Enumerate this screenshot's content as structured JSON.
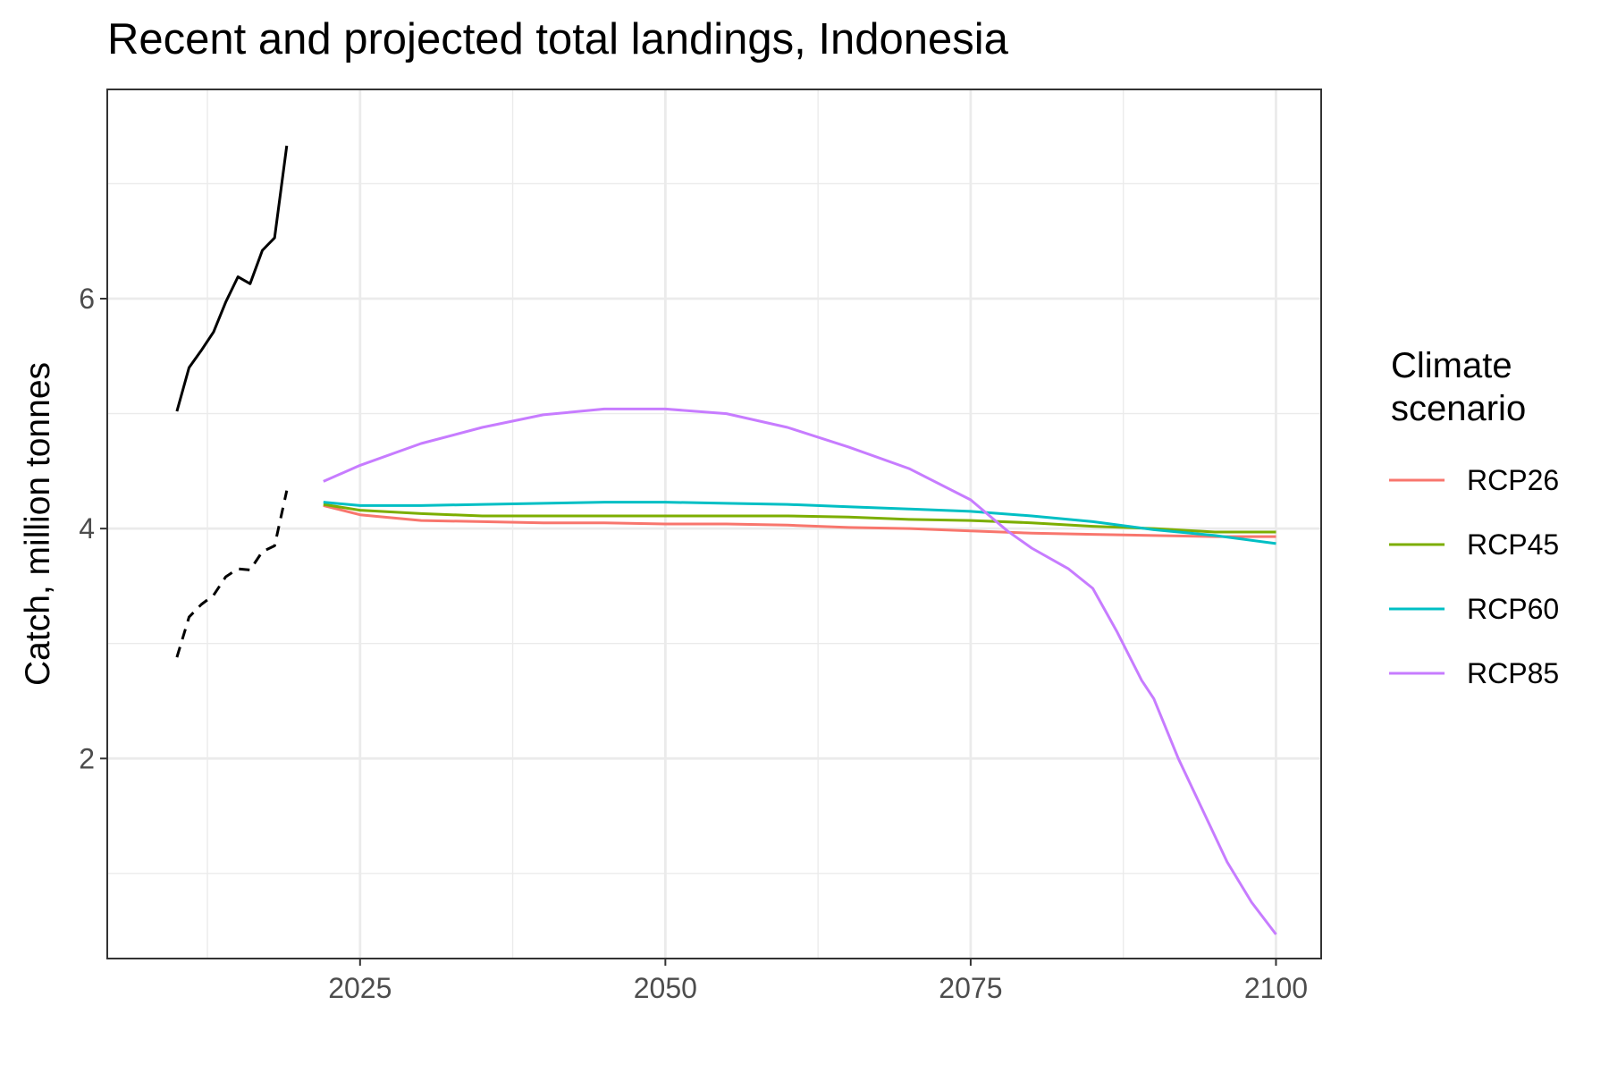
{
  "chart_data": {
    "type": "line",
    "title": "Recent and projected total landings, Indonesia",
    "xlabel": "",
    "ylabel": "Catch, million tonnes",
    "xlim": [
      2004.3,
      2103.7
    ],
    "ylim": [
      0.26,
      7.82
    ],
    "x_ticks": [
      2025,
      2050,
      2075,
      2100
    ],
    "y_ticks": [
      2,
      4,
      6
    ],
    "grid": true,
    "legend": {
      "title": "Climate scenario",
      "placement": "right"
    },
    "historical": [
      {
        "style": "solid",
        "color": "#000000",
        "x": [
          2010,
          2011,
          2012,
          2013,
          2014,
          2015,
          2016,
          2017,
          2018,
          2019
        ],
        "y": [
          5.02,
          5.4,
          5.55,
          5.71,
          5.97,
          6.19,
          6.13,
          6.42,
          6.53,
          7.33
        ]
      },
      {
        "style": "dashed",
        "color": "#000000",
        "x": [
          2010,
          2011,
          2012,
          2013,
          2014,
          2015,
          2016,
          2017,
          2018,
          2019
        ],
        "y": [
          2.88,
          3.23,
          3.34,
          3.42,
          3.58,
          3.65,
          3.64,
          3.8,
          3.85,
          4.33
        ]
      }
    ],
    "series": [
      {
        "name": "RCP26",
        "color": "#F8766D",
        "x": [
          2022,
          2025,
          2030,
          2035,
          2040,
          2045,
          2050,
          2055,
          2060,
          2065,
          2070,
          2075,
          2080,
          2085,
          2090,
          2095,
          2100
        ],
        "y": [
          4.2,
          4.12,
          4.07,
          4.06,
          4.05,
          4.05,
          4.04,
          4.04,
          4.03,
          4.01,
          4.0,
          3.98,
          3.96,
          3.95,
          3.94,
          3.93,
          3.93
        ]
      },
      {
        "name": "RCP45",
        "color": "#7CAE00",
        "x": [
          2022,
          2025,
          2030,
          2035,
          2040,
          2045,
          2050,
          2055,
          2060,
          2065,
          2070,
          2075,
          2080,
          2085,
          2090,
          2095,
          2100
        ],
        "y": [
          4.21,
          4.16,
          4.13,
          4.11,
          4.11,
          4.11,
          4.11,
          4.11,
          4.11,
          4.1,
          4.08,
          4.07,
          4.05,
          4.02,
          4.0,
          3.97,
          3.97
        ]
      },
      {
        "name": "RCP60",
        "color": "#00BFC4",
        "x": [
          2022,
          2025,
          2030,
          2035,
          2040,
          2045,
          2050,
          2055,
          2060,
          2065,
          2070,
          2075,
          2080,
          2085,
          2090,
          2095,
          2100
        ],
        "y": [
          4.23,
          4.2,
          4.2,
          4.21,
          4.22,
          4.23,
          4.23,
          4.22,
          4.21,
          4.19,
          4.17,
          4.15,
          4.11,
          4.06,
          3.99,
          3.94,
          3.87
        ]
      },
      {
        "name": "RCP85",
        "color": "#C77CFF",
        "x": [
          2022,
          2025,
          2030,
          2035,
          2040,
          2045,
          2050,
          2055,
          2060,
          2065,
          2070,
          2075,
          2078,
          2080,
          2083,
          2085,
          2087,
          2089,
          2090,
          2092,
          2094,
          2096,
          2098,
          2100
        ],
        "y": [
          4.41,
          4.55,
          4.74,
          4.88,
          4.99,
          5.04,
          5.04,
          5.0,
          4.88,
          4.71,
          4.52,
          4.25,
          3.98,
          3.83,
          3.65,
          3.48,
          3.1,
          2.68,
          2.52,
          2.0,
          1.55,
          1.1,
          0.75,
          0.47
        ]
      }
    ]
  }
}
